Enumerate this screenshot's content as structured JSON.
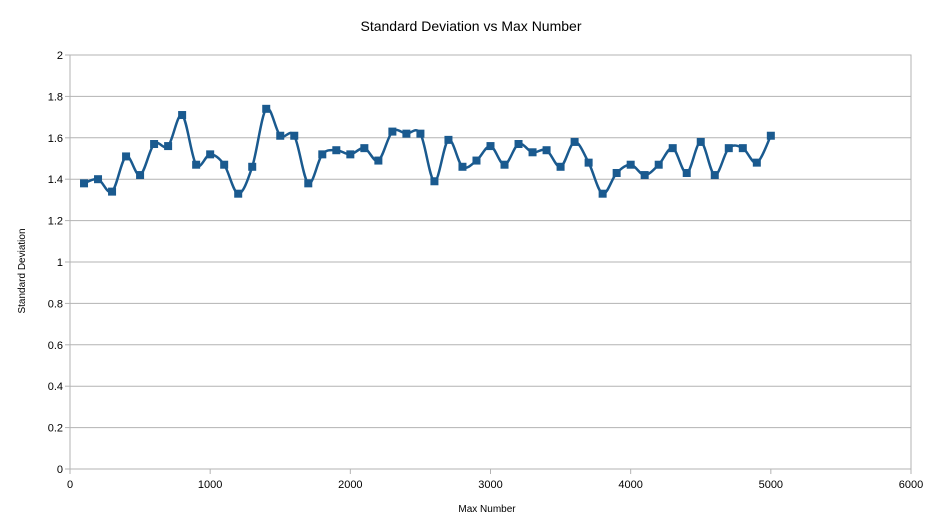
{
  "chart_data": {
    "type": "line",
    "title": "Standard Deviation vs Max Number",
    "xlabel": "Max Number",
    "ylabel": "Standard Deviation",
    "xlim": [
      0,
      6000
    ],
    "ylim": [
      0,
      2
    ],
    "x_ticks": [
      0,
      1000,
      2000,
      3000,
      4000,
      5000,
      6000
    ],
    "y_ticks": [
      "0",
      "0.2",
      "0.4",
      "0.6",
      "0.8",
      "1",
      "1.2",
      "1.4",
      "1.6",
      "1.8",
      "2"
    ],
    "y_tick_values": [
      0,
      0.2,
      0.4,
      0.6,
      0.8,
      1,
      1.2,
      1.4,
      1.6,
      1.8,
      2
    ],
    "grid": "horizontal",
    "legend": "none",
    "series": [
      {
        "color": "#1a5a8f",
        "marker": "square",
        "smooth": true,
        "x": [
          100,
          200,
          300,
          400,
          500,
          600,
          700,
          800,
          900,
          1000,
          1100,
          1200,
          1300,
          1400,
          1500,
          1600,
          1700,
          1800,
          1900,
          2000,
          2100,
          2200,
          2300,
          2400,
          2500,
          2600,
          2700,
          2800,
          2900,
          3000,
          3100,
          3200,
          3300,
          3400,
          3500,
          3600,
          3700,
          3800,
          3900,
          4000,
          4100,
          4200,
          4300,
          4400,
          4500,
          4600,
          4700,
          4800,
          4900,
          5000
        ],
        "values": [
          1.38,
          1.4,
          1.34,
          1.51,
          1.42,
          1.57,
          1.56,
          1.71,
          1.47,
          1.52,
          1.47,
          1.33,
          1.46,
          1.74,
          1.61,
          1.61,
          1.38,
          1.52,
          1.54,
          1.52,
          1.55,
          1.49,
          1.63,
          1.62,
          1.62,
          1.39,
          1.59,
          1.46,
          1.49,
          1.56,
          1.47,
          1.57,
          1.53,
          1.54,
          1.46,
          1.58,
          1.48,
          1.33,
          1.43,
          1.47,
          1.42,
          1.47,
          1.55,
          1.43,
          1.58,
          1.42,
          1.55,
          1.55,
          1.48,
          1.61
        ]
      }
    ]
  }
}
